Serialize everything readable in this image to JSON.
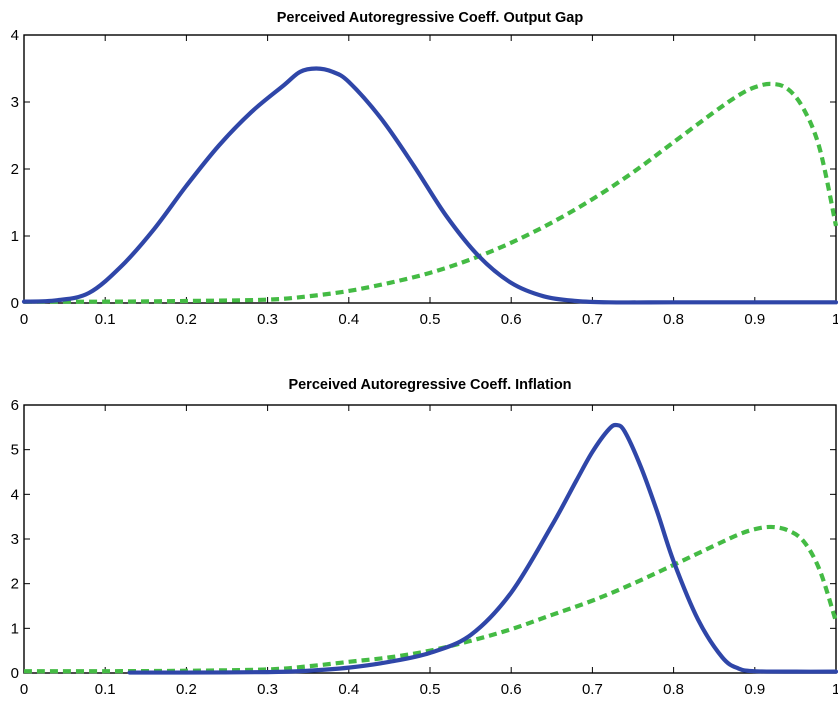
{
  "chart_data": [
    {
      "type": "line",
      "title": "Perceived Autoregressive Coeff. Output Gap",
      "xlabel": "",
      "ylabel": "",
      "xlim": [
        0,
        1
      ],
      "ylim": [
        0,
        4
      ],
      "x_ticks": [
        "0",
        "0.1",
        "0.2",
        "0.3",
        "0.4",
        "0.5",
        "0.6",
        "0.7",
        "0.8",
        "0.9",
        "1"
      ],
      "y_ticks": [
        "0",
        "1",
        "2",
        "3",
        "4"
      ],
      "grid": false,
      "legend": "none",
      "series": [
        {
          "style": "solid",
          "color": "#2f46a8",
          "x": [
            0,
            0.04,
            0.08,
            0.12,
            0.16,
            0.2,
            0.24,
            0.28,
            0.32,
            0.34,
            0.36,
            0.38,
            0.4,
            0.44,
            0.48,
            0.52,
            0.56,
            0.6,
            0.64,
            0.68,
            0.72,
            0.8,
            0.9,
            1.0
          ],
          "y": [
            0.02,
            0.04,
            0.15,
            0.55,
            1.1,
            1.75,
            2.35,
            2.85,
            3.25,
            3.45,
            3.5,
            3.45,
            3.3,
            2.75,
            2.05,
            1.3,
            0.7,
            0.3,
            0.1,
            0.03,
            0.01,
            0.01,
            0.01,
            0.01
          ]
        },
        {
          "style": "dashed",
          "color": "#44bb44",
          "x": [
            0,
            0.1,
            0.2,
            0.3,
            0.35,
            0.4,
            0.45,
            0.5,
            0.55,
            0.6,
            0.65,
            0.7,
            0.75,
            0.8,
            0.85,
            0.88,
            0.9,
            0.92,
            0.94,
            0.96,
            0.98,
            1.0
          ],
          "y": [
            0.02,
            0.02,
            0.03,
            0.05,
            0.1,
            0.18,
            0.3,
            0.45,
            0.65,
            0.9,
            1.2,
            1.55,
            1.95,
            2.4,
            2.85,
            3.1,
            3.22,
            3.27,
            3.2,
            2.9,
            2.3,
            1.15
          ]
        }
      ]
    },
    {
      "type": "line",
      "title": "Perceived Autoregressive Coeff. Inflation",
      "xlabel": "",
      "ylabel": "",
      "xlim": [
        0,
        1
      ],
      "ylim": [
        0,
        6
      ],
      "x_ticks": [
        "0",
        "0.1",
        "0.2",
        "0.3",
        "0.4",
        "0.5",
        "0.6",
        "0.7",
        "0.8",
        "0.9",
        "1"
      ],
      "y_ticks": [
        "0",
        "1",
        "2",
        "3",
        "4",
        "5",
        "6"
      ],
      "grid": false,
      "legend": "none",
      "series": [
        {
          "style": "solid",
          "color": "#2f46a8",
          "x": [
            0.13,
            0.2,
            0.3,
            0.35,
            0.4,
            0.45,
            0.5,
            0.55,
            0.6,
            0.65,
            0.68,
            0.7,
            0.72,
            0.73,
            0.74,
            0.76,
            0.78,
            0.8,
            0.83,
            0.86,
            0.88,
            0.9,
            0.95,
            1.0
          ],
          "y": [
            0.01,
            0.01,
            0.02,
            0.05,
            0.12,
            0.25,
            0.45,
            0.85,
            1.8,
            3.3,
            4.3,
            4.95,
            5.45,
            5.55,
            5.4,
            4.6,
            3.6,
            2.5,
            1.2,
            0.35,
            0.1,
            0.04,
            0.03,
            0.03
          ]
        },
        {
          "style": "dashed",
          "color": "#44bb44",
          "x": [
            0,
            0.1,
            0.2,
            0.3,
            0.35,
            0.4,
            0.45,
            0.5,
            0.55,
            0.6,
            0.65,
            0.7,
            0.75,
            0.8,
            0.85,
            0.88,
            0.9,
            0.92,
            0.94,
            0.96,
            0.98,
            1.0
          ],
          "y": [
            0.04,
            0.04,
            0.05,
            0.08,
            0.15,
            0.25,
            0.35,
            0.5,
            0.72,
            0.98,
            1.3,
            1.62,
            2.0,
            2.42,
            2.85,
            3.1,
            3.22,
            3.27,
            3.2,
            2.95,
            2.3,
            1.15
          ]
        }
      ]
    }
  ]
}
